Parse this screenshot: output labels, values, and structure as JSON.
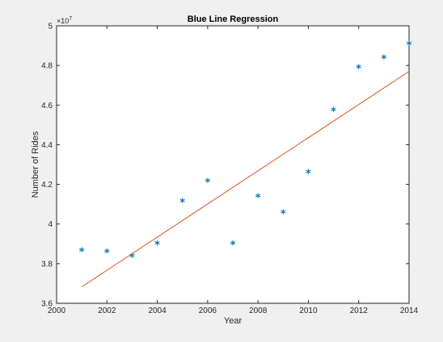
{
  "chart_data": {
    "type": "scatter",
    "title": "Blue Line Regression",
    "xlabel": "Year",
    "ylabel": "Number of Rides",
    "y_exponent_base": "×10",
    "y_exponent_power": "7",
    "xlim": [
      2000,
      2014
    ],
    "ylim": [
      3.6,
      5.0
    ],
    "y_scale_factor": 10000000,
    "x_ticks": [
      2000,
      2002,
      2004,
      2006,
      2008,
      2010,
      2012,
      2014
    ],
    "x_tick_labels": [
      "2000",
      "2002",
      "2004",
      "2006",
      "2008",
      "2010",
      "2012",
      "2014"
    ],
    "y_ticks": [
      3.6,
      3.8,
      4.0,
      4.2,
      4.4,
      4.6,
      4.8,
      5.0
    ],
    "y_tick_labels": [
      "3.6",
      "3.8",
      "4",
      "4.2",
      "4.4",
      "4.6",
      "4.8",
      "5"
    ],
    "grid": false,
    "series": [
      {
        "type": "scatter",
        "marker": "*",
        "color": "#0072bd",
        "x": [
          2001,
          2002,
          2003,
          2004,
          2005,
          2006,
          2007,
          2008,
          2009,
          2010,
          2011,
          2012,
          2013,
          2014
        ],
        "y": [
          3.862,
          3.857,
          3.835,
          3.897,
          4.11,
          4.213,
          3.897,
          4.135,
          4.053,
          4.258,
          4.57,
          4.787,
          4.835,
          4.905
        ]
      },
      {
        "type": "line",
        "color": "#d95319",
        "x": [
          2001,
          2014
        ],
        "y": [
          3.683,
          4.77
        ]
      }
    ]
  }
}
